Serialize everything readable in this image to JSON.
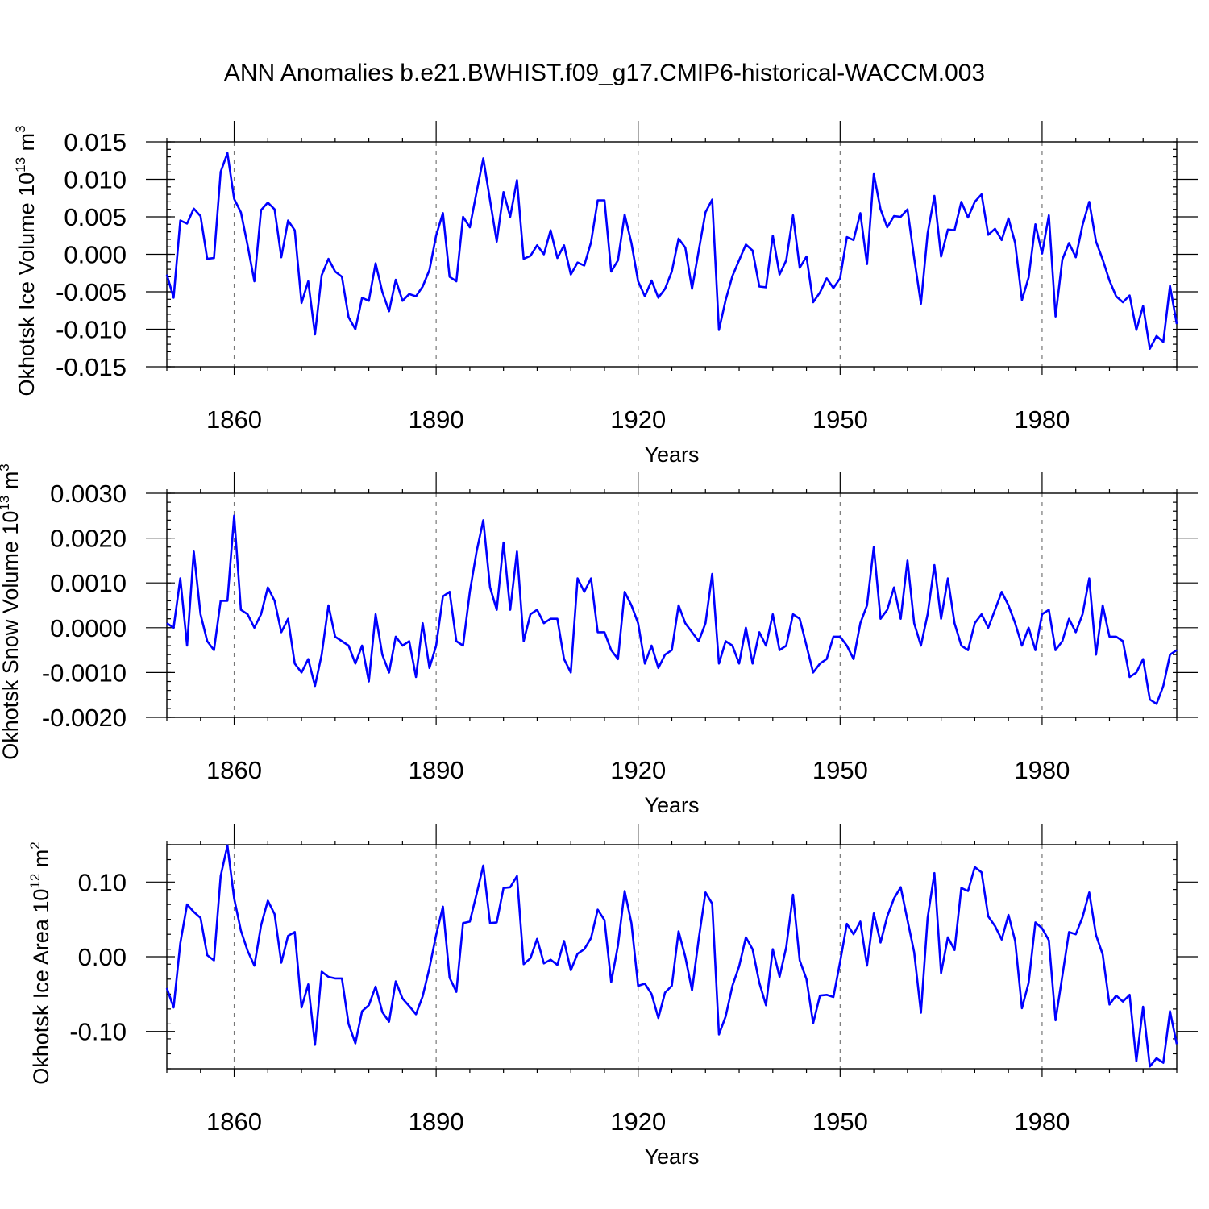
{
  "title": "ANN Anomalies b.e21.BWHIST.f09_g17.CMIP6-historical-WACCM.003",
  "colors": {
    "series": "#0000ff",
    "frame": "#000000",
    "grid": "#777777"
  },
  "chart_data": [
    {
      "type": "line",
      "ylabel": {
        "text": "Okhotsk Ice Volume 10",
        "sup": "13",
        "unit": " m",
        "unit_sup": "3"
      },
      "xlabel": "Years",
      "xlim": [
        1850,
        2000
      ],
      "ylim": [
        -0.015,
        0.015
      ],
      "grid": true,
      "x_major_ticks": [
        1860,
        1890,
        1920,
        1950,
        1980
      ],
      "x_tick_labels": [
        "1860",
        "1890",
        "1920",
        "1950",
        "1980"
      ],
      "y_major_ticks": [
        -0.015,
        -0.01,
        -0.005,
        0.0,
        0.005,
        0.01,
        0.015
      ],
      "y_tick_labels": [
        "-0.015",
        "-0.010",
        "-0.005",
        "0.000",
        "0.005",
        "0.010",
        "0.015"
      ],
      "y_minor_step": 0.001,
      "start_year": 1850,
      "values": [
        -0.0027,
        -0.0058,
        0.0045,
        0.0041,
        0.0061,
        0.0051,
        -0.0006,
        -0.0005,
        0.011,
        0.0135,
        0.0074,
        0.0056,
        0.0012,
        -0.0036,
        0.0059,
        0.0069,
        0.006,
        -0.0004,
        0.0045,
        0.0032,
        -0.0065,
        -0.0036,
        -0.0107,
        -0.0028,
        -0.0006,
        -0.0023,
        -0.003,
        -0.0084,
        -0.01,
        -0.0058,
        -0.0062,
        -0.0012,
        -0.005,
        -0.0076,
        -0.0034,
        -0.0062,
        -0.0053,
        -0.0056,
        -0.0043,
        -0.0021,
        0.0025,
        0.0055,
        -0.003,
        -0.0036,
        0.005,
        0.0036,
        0.0083,
        0.0128,
        0.0072,
        0.0017,
        0.0083,
        0.005,
        0.0099,
        -0.0006,
        -0.0002,
        0.0012,
        0.0,
        0.0032,
        -0.0005,
        0.0012,
        -0.0027,
        -0.0011,
        -0.0015,
        0.0016,
        0.0072,
        0.0072,
        -0.0023,
        -0.0008,
        0.0053,
        0.0015,
        -0.0036,
        -0.0056,
        -0.0035,
        -0.0058,
        -0.0046,
        -0.0023,
        0.0021,
        0.0009,
        -0.0046,
        0.0005,
        0.0056,
        0.0073,
        -0.0101,
        -0.0061,
        -0.0029,
        -0.0008,
        0.0013,
        0.0005,
        -0.0043,
        -0.0044,
        0.0025,
        -0.0027,
        -0.0008,
        0.0052,
        -0.0018,
        -0.0003,
        -0.0064,
        -0.0051,
        -0.0032,
        -0.0045,
        -0.0032,
        0.0023,
        0.0019,
        0.0055,
        -0.0013,
        0.0107,
        0.006,
        0.0036,
        0.0051,
        0.005,
        0.006,
        -0.0005,
        -0.0066,
        0.0028,
        0.0078,
        -0.0003,
        0.0033,
        0.0032,
        0.007,
        0.0049,
        0.007,
        0.008,
        0.0026,
        0.0034,
        0.0019,
        0.0048,
        0.0015,
        -0.0061,
        -0.0031,
        0.004,
        0.0001,
        0.0052,
        -0.0083,
        -0.0007,
        0.0015,
        -0.0004,
        0.0039,
        0.007,
        0.0017,
        -0.0007,
        -0.0035,
        -0.0056,
        -0.0064,
        -0.0055,
        -0.0101,
        -0.0069,
        -0.0126,
        -0.0109,
        -0.0117,
        -0.0042,
        -0.0093
      ]
    },
    {
      "type": "line",
      "ylabel": {
        "text": "Okhotsk Snow Volume 10",
        "sup": "13",
        "unit": " m",
        "unit_sup": "3"
      },
      "xlabel": "Years",
      "xlim": [
        1850,
        2000
      ],
      "ylim": [
        -0.002,
        0.003
      ],
      "grid": true,
      "x_major_ticks": [
        1860,
        1890,
        1920,
        1950,
        1980
      ],
      "x_tick_labels": [
        "1860",
        "1890",
        "1920",
        "1950",
        "1980"
      ],
      "y_major_ticks": [
        -0.002,
        -0.001,
        0.0,
        0.001,
        0.002,
        0.003
      ],
      "y_tick_labels": [
        "-0.0020",
        "-0.0010",
        "0.0000",
        "0.0010",
        "0.0020",
        "0.0030"
      ],
      "y_minor_step": 0.0002,
      "start_year": 1850,
      "values": [
        0.0001,
        0.0,
        0.0011,
        -0.0004,
        0.0017,
        0.0003,
        -0.0003,
        -0.0005,
        0.0006,
        0.0006,
        0.0025,
        0.0004,
        0.0003,
        0.0,
        0.0003,
        0.0009,
        0.0006,
        -0.0001,
        0.0002,
        -0.0008,
        -0.001,
        -0.0007,
        -0.0013,
        -0.0006,
        0.0005,
        -0.0002,
        -0.0003,
        -0.0004,
        -0.0008,
        -0.0004,
        -0.0012,
        0.0003,
        -0.0006,
        -0.001,
        -0.0002,
        -0.0004,
        -0.0003,
        -0.0011,
        0.0001,
        -0.0009,
        -0.0004,
        0.0007,
        0.0008,
        -0.0003,
        -0.0004,
        0.0008,
        0.0017,
        0.0024,
        0.0009,
        0.0004,
        0.0019,
        0.0004,
        0.0017,
        -0.0003,
        0.0003,
        0.0004,
        0.0001,
        0.0002,
        0.0002,
        -0.0007,
        -0.001,
        0.0011,
        0.0008,
        0.0011,
        -0.0001,
        -0.0001,
        -0.0005,
        -0.0007,
        0.0008,
        0.0005,
        0.0001,
        -0.0008,
        -0.0004,
        -0.0009,
        -0.0006,
        -0.0005,
        0.0005,
        0.0001,
        -0.0001,
        -0.0003,
        0.0001,
        0.0012,
        -0.0008,
        -0.0003,
        -0.0004,
        -0.0008,
        0.0,
        -0.0008,
        -0.0001,
        -0.0004,
        0.0003,
        -0.0005,
        -0.0004,
        0.0003,
        0.0002,
        -0.0004,
        -0.001,
        -0.0008,
        -0.0007,
        -0.0002,
        -0.0002,
        -0.0004,
        -0.0007,
        0.0001,
        0.0005,
        0.0018,
        0.0002,
        0.0004,
        0.0009,
        0.0002,
        0.0015,
        0.0001,
        -0.0004,
        0.0003,
        0.0014,
        0.0002,
        0.0011,
        0.0001,
        -0.0004,
        -0.0005,
        0.0001,
        0.0003,
        0.0,
        0.0004,
        0.0008,
        0.0005,
        0.0001,
        -0.0004,
        0.0,
        -0.0005,
        0.0003,
        0.0004,
        -0.0005,
        -0.0003,
        0.0002,
        -0.0001,
        0.0003,
        0.0011,
        -0.0006,
        0.0005,
        -0.0002,
        -0.0002,
        -0.0003,
        -0.0011,
        -0.001,
        -0.0007,
        -0.0016,
        -0.0017,
        -0.0013,
        -0.0006,
        -0.0005
      ]
    },
    {
      "type": "line",
      "ylabel": {
        "text": "Okhotsk Ice Area 10",
        "sup": "12",
        "unit": " m",
        "unit_sup": "2"
      },
      "xlabel": "Years",
      "xlim": [
        1850,
        2000
      ],
      "ylim": [
        -0.15,
        0.15
      ],
      "grid": true,
      "x_major_ticks": [
        1860,
        1890,
        1920,
        1950,
        1980
      ],
      "x_tick_labels": [
        "1860",
        "1890",
        "1920",
        "1950",
        "1980"
      ],
      "y_major_ticks": [
        -0.1,
        0.0,
        0.1
      ],
      "y_tick_labels": [
        "-0.10",
        "0.00",
        "0.10"
      ],
      "y_minor_step": 0.02,
      "start_year": 1850,
      "values": [
        -0.042,
        -0.068,
        0.018,
        0.07,
        0.06,
        0.052,
        0.002,
        -0.005,
        0.108,
        0.149,
        0.078,
        0.035,
        0.008,
        -0.012,
        0.042,
        0.075,
        0.057,
        -0.008,
        0.028,
        0.033,
        -0.068,
        -0.037,
        -0.118,
        -0.02,
        -0.027,
        -0.029,
        -0.029,
        -0.09,
        -0.116,
        -0.073,
        -0.065,
        -0.04,
        -0.074,
        -0.087,
        -0.033,
        -0.056,
        -0.066,
        -0.077,
        -0.053,
        -0.015,
        0.029,
        0.067,
        -0.028,
        -0.047,
        0.045,
        0.047,
        0.084,
        0.122,
        0.045,
        0.046,
        0.092,
        0.093,
        0.108,
        -0.01,
        -0.002,
        0.024,
        -0.009,
        -0.004,
        -0.011,
        0.021,
        -0.018,
        0.004,
        0.01,
        0.025,
        0.063,
        0.049,
        -0.034,
        0.015,
        0.088,
        0.045,
        -0.039,
        -0.036,
        -0.05,
        -0.082,
        -0.048,
        -0.039,
        0.034,
        0.0,
        -0.045,
        0.024,
        0.086,
        0.071,
        -0.104,
        -0.08,
        -0.039,
        -0.013,
        0.026,
        0.01,
        -0.035,
        -0.065,
        0.01,
        -0.027,
        0.013,
        0.083,
        -0.005,
        -0.03,
        -0.089,
        -0.052,
        -0.051,
        -0.054,
        -0.007,
        0.044,
        0.03,
        0.047,
        -0.012,
        0.058,
        0.019,
        0.054,
        0.078,
        0.093,
        0.049,
        0.006,
        -0.075,
        0.052,
        0.112,
        -0.022,
        0.026,
        0.009,
        0.092,
        0.088,
        0.12,
        0.113,
        0.054,
        0.041,
        0.023,
        0.056,
        0.021,
        -0.069,
        -0.035,
        0.046,
        0.038,
        0.022,
        -0.085,
        -0.026,
        0.033,
        0.03,
        0.053,
        0.086,
        0.029,
        0.003,
        -0.064,
        -0.052,
        -0.06,
        -0.051,
        -0.14,
        -0.067,
        -0.147,
        -0.136,
        -0.142,
        -0.073,
        -0.117
      ]
    }
  ]
}
